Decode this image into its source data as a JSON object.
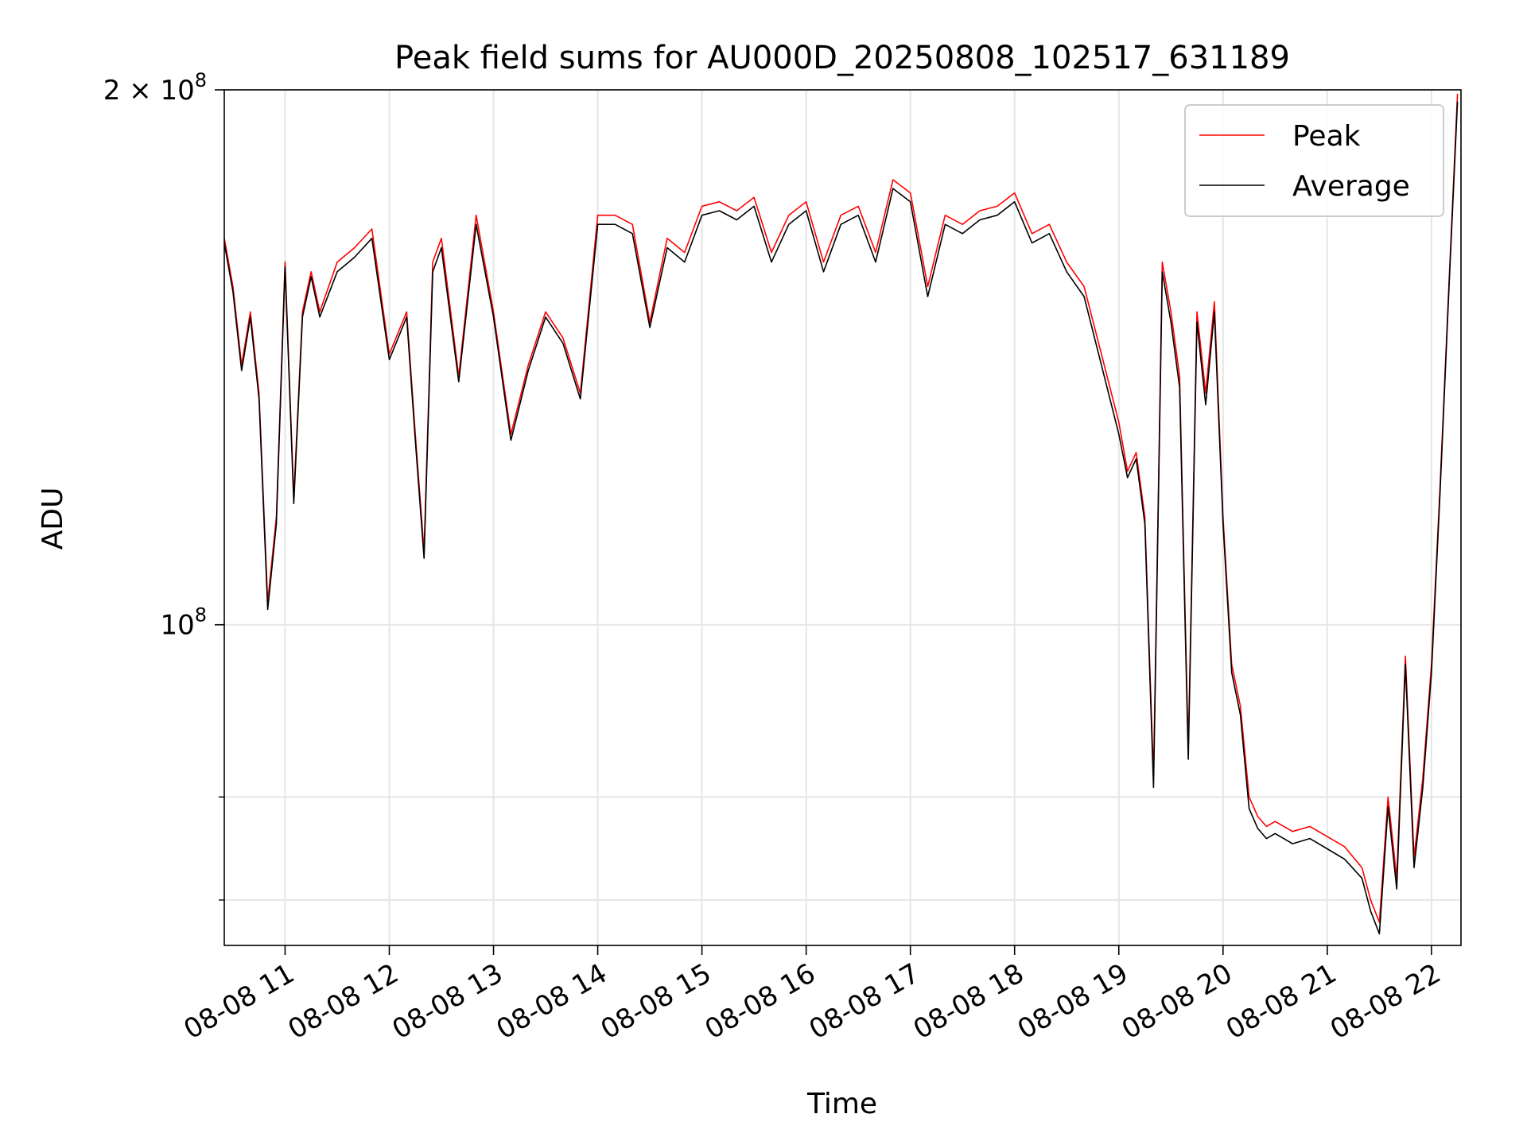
{
  "chart_data": {
    "type": "line",
    "title": "Peak field sums for AU000D_20250808_102517_631189",
    "xlabel": "Time",
    "ylabel": "ADU",
    "yscale": "log",
    "xlim": [
      "2025-08-08 10:25",
      "2025-08-08 22:17"
    ],
    "ylim": [
      66000000,
      200000000
    ],
    "grid": true,
    "legend": "top-right",
    "x_ticks": [
      "08-08 11",
      "08-08 12",
      "08-08 13",
      "08-08 14",
      "08-08 15",
      "08-08 16",
      "08-08 17",
      "08-08 18",
      "08-08 19",
      "08-08 20",
      "08-08 21",
      "08-08 22"
    ],
    "y_tick_labels": {
      "major_1e8": "10",
      "major_1e8_exp": "8",
      "major_2e8": "2 × 10",
      "major_2e8_exp": "8"
    },
    "y_ticks": [
      100000000,
      200000000
    ],
    "y_minor_ticks": [
      70000000,
      80000000
    ],
    "x": [
      "10:25",
      "10:30",
      "10:35",
      "10:40",
      "10:45",
      "10:50",
      "10:55",
      "11:00",
      "11:05",
      "11:10",
      "11:15",
      "11:20",
      "11:30",
      "11:40",
      "11:50",
      "12:00",
      "12:10",
      "12:15",
      "12:20",
      "12:25",
      "12:30",
      "12:40",
      "12:50",
      "13:00",
      "13:10",
      "13:20",
      "13:30",
      "13:40",
      "13:50",
      "14:00",
      "14:10",
      "14:20",
      "14:30",
      "14:40",
      "14:50",
      "15:00",
      "15:10",
      "15:20",
      "15:30",
      "15:40",
      "15:50",
      "16:00",
      "16:10",
      "16:20",
      "16:30",
      "16:40",
      "16:50",
      "17:00",
      "17:10",
      "17:20",
      "17:30",
      "17:40",
      "17:50",
      "18:00",
      "18:10",
      "18:20",
      "18:30",
      "18:40",
      "18:50",
      "19:00",
      "19:05",
      "19:10",
      "19:15",
      "19:20",
      "19:25",
      "19:30",
      "19:35",
      "19:40",
      "19:45",
      "19:50",
      "19:55",
      "20:00",
      "20:05",
      "20:10",
      "20:15",
      "20:20",
      "20:25",
      "20:30",
      "20:40",
      "20:50",
      "21:00",
      "21:10",
      "21:20",
      "21:25",
      "21:30",
      "21:35",
      "21:40",
      "21:45",
      "21:50",
      "21:55",
      "22:00",
      "22:05",
      "22:10",
      "22:15"
    ],
    "series": [
      {
        "name": "Peak",
        "color": "#ff0000",
        "values": [
          165000000,
          155000000,
          140000000,
          150000000,
          135000000,
          103000000,
          115000000,
          160000000,
          118000000,
          150000000,
          158000000,
          150000000,
          160000000,
          163000000,
          167000000,
          142000000,
          150000000,
          128000000,
          110000000,
          160000000,
          165000000,
          138000000,
          170000000,
          150000000,
          128000000,
          140000000,
          150000000,
          145000000,
          135000000,
          170000000,
          170000000,
          168000000,
          148000000,
          165000000,
          162000000,
          172000000,
          173000000,
          171000000,
          174000000,
          162000000,
          170000000,
          173000000,
          160000000,
          170000000,
          172000000,
          162000000,
          178000000,
          175000000,
          155000000,
          170000000,
          168000000,
          171000000,
          172000000,
          175000000,
          166000000,
          168000000,
          160000000,
          155000000,
          142000000,
          130000000,
          122000000,
          125000000,
          115000000,
          82000000,
          160000000,
          150000000,
          138000000,
          85000000,
          150000000,
          135000000,
          152000000,
          115000000,
          95000000,
          90000000,
          80000000,
          78000000,
          77000000,
          77500000,
          76500000,
          77000000,
          76000000,
          75000000,
          73000000,
          70000000,
          68000000,
          80000000,
          72000000,
          96000000,
          74000000,
          82000000,
          95000000,
          120000000,
          155000000,
          199000000
        ]
      },
      {
        "name": "Average",
        "color": "#000000",
        "values": [
          164000000,
          154000000,
          139000000,
          149000000,
          134000000,
          102000000,
          114000000,
          159000000,
          117000000,
          149000000,
          157000000,
          149000000,
          158000000,
          161000000,
          165000000,
          141000000,
          149000000,
          127000000,
          109000000,
          158000000,
          163000000,
          137000000,
          168000000,
          149000000,
          127000000,
          139000000,
          149000000,
          144000000,
          134000000,
          168000000,
          168000000,
          166000000,
          147000000,
          163000000,
          160000000,
          170000000,
          171000000,
          169000000,
          172000000,
          160000000,
          168000000,
          171000000,
          158000000,
          168000000,
          170000000,
          160000000,
          176000000,
          173000000,
          153000000,
          168000000,
          166000000,
          169000000,
          170000000,
          173000000,
          164000000,
          166000000,
          158000000,
          153000000,
          140000000,
          128000000,
          121000000,
          124000000,
          114000000,
          81000000,
          158000000,
          148000000,
          136000000,
          84000000,
          148000000,
          133000000,
          150000000,
          114000000,
          94000000,
          89000000,
          78800000,
          76800000,
          75800000,
          76300000,
          75300000,
          75800000,
          74800000,
          73800000,
          72000000,
          69000000,
          67000000,
          79000000,
          71000000,
          95000000,
          73000000,
          81000000,
          94000000,
          119000000,
          154000000,
          197000000
        ]
      }
    ]
  }
}
